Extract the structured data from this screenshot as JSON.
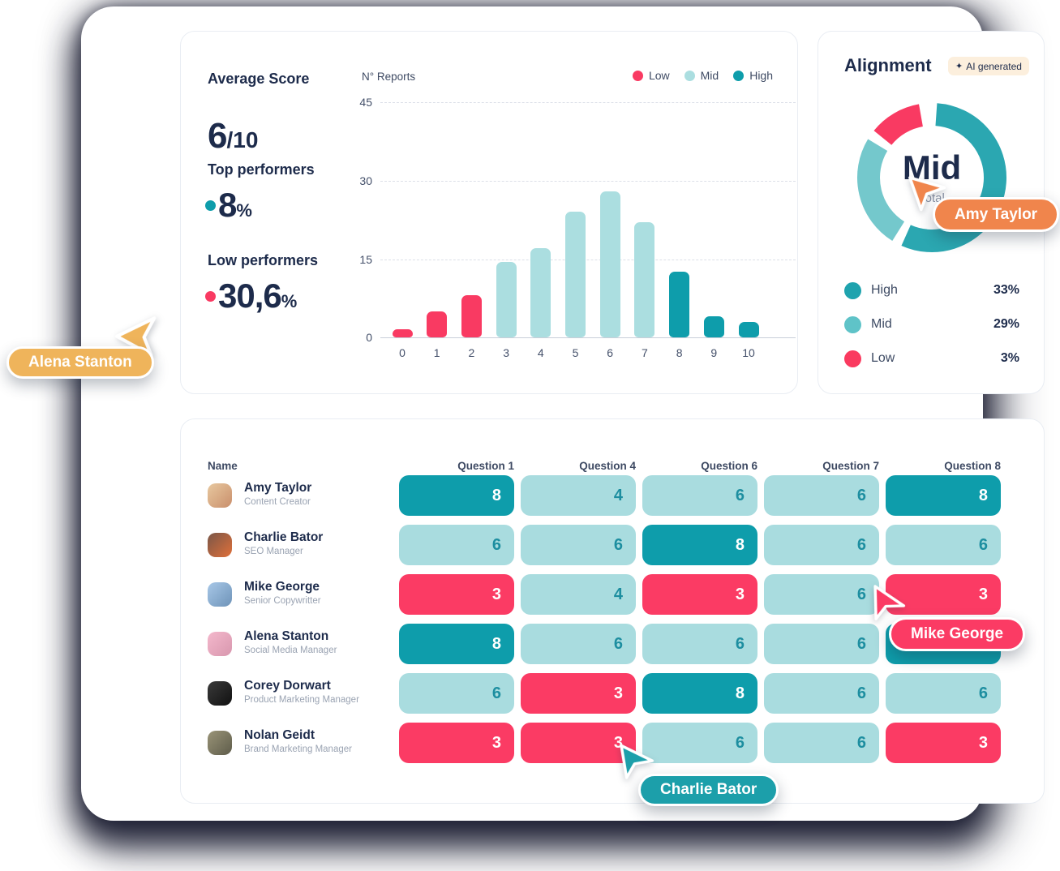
{
  "score_card": {
    "average_label": "Average Score",
    "average_value": "6",
    "average_denominator": "/10",
    "top_label": "Top performers",
    "top_value": "8",
    "top_unit": "%",
    "low_label": "Low performers",
    "low_value": "30,6",
    "low_unit": "%"
  },
  "chart_data": [
    {
      "type": "bar",
      "title": "N° Reports",
      "categories": [
        "0",
        "1",
        "2",
        "3",
        "4",
        "5",
        "6",
        "7",
        "8",
        "9",
        "10"
      ],
      "values": [
        1.5,
        5,
        8,
        14.5,
        17,
        24,
        28,
        22,
        12.5,
        4,
        3
      ],
      "levels": [
        "low",
        "low",
        "low",
        "mid",
        "mid",
        "mid",
        "mid",
        "mid",
        "high",
        "high",
        "high"
      ],
      "yticks": [
        "45",
        "30",
        "15",
        "0"
      ],
      "ylim": [
        0,
        45
      ],
      "grid": "dashed horizontal",
      "legend": [
        {
          "label": "Low",
          "color": "#F93A62"
        },
        {
          "label": "Mid",
          "color": "#ABDEE0"
        },
        {
          "label": "High",
          "color": "#0E9DAB"
        }
      ],
      "legend_position": "top-right"
    },
    {
      "type": "donut",
      "title": "Alignment",
      "center_label": "Mid",
      "center_sublabel": "Total",
      "segments": [
        {
          "label": "High",
          "pct": "33%",
          "arc_deg": 200,
          "color": "#2BA7B1"
        },
        {
          "label": "Mid",
          "pct": "29%",
          "arc_deg": 89,
          "color": "#74C8CC"
        },
        {
          "label": "Low",
          "pct": "3%",
          "arc_deg": 41,
          "color": "#F93A62"
        }
      ]
    }
  ],
  "alignment_card": {
    "title": "Alignment",
    "badge_icon": "✦",
    "badge_label": "AI generated",
    "center_label": "Mid",
    "center_sublabel": "Total",
    "legend": [
      {
        "label": "High",
        "value": "33%"
      },
      {
        "label": "Mid",
        "value": "29%"
      },
      {
        "label": "Low",
        "value": "3%"
      }
    ]
  },
  "table": {
    "name_header": "Name",
    "question_headers": [
      "Question 1",
      "Question 4",
      "Question 6",
      "Question 7",
      "Question 8"
    ],
    "rows": [
      {
        "name": "Amy Taylor",
        "role": "Content Creator",
        "cells": [
          {
            "v": "8",
            "level": "high"
          },
          {
            "v": "4",
            "level": "mid"
          },
          {
            "v": "6",
            "level": "mid"
          },
          {
            "v": "6",
            "level": "mid"
          },
          {
            "v": "8",
            "level": "high"
          }
        ]
      },
      {
        "name": "Charlie Bator",
        "role": "SEO Manager",
        "cells": [
          {
            "v": "6",
            "level": "mid"
          },
          {
            "v": "6",
            "level": "mid"
          },
          {
            "v": "8",
            "level": "high"
          },
          {
            "v": "6",
            "level": "mid"
          },
          {
            "v": "6",
            "level": "mid"
          }
        ]
      },
      {
        "name": "Mike George",
        "role": "Senior Copywritter",
        "cells": [
          {
            "v": "3",
            "level": "low"
          },
          {
            "v": "4",
            "level": "mid"
          },
          {
            "v": "3",
            "level": "low"
          },
          {
            "v": "6",
            "level": "mid"
          },
          {
            "v": "3",
            "level": "low"
          }
        ]
      },
      {
        "name": "Alena Stanton",
        "role": "Social Media Manager",
        "cells": [
          {
            "v": "8",
            "level": "high"
          },
          {
            "v": "6",
            "level": "mid"
          },
          {
            "v": "6",
            "level": "mid"
          },
          {
            "v": "6",
            "level": "mid"
          },
          {
            "v": "8",
            "level": "high"
          }
        ]
      },
      {
        "name": "Corey Dorwart",
        "role": "Product Marketing Manager",
        "cells": [
          {
            "v": "6",
            "level": "mid"
          },
          {
            "v": "3",
            "level": "low"
          },
          {
            "v": "8",
            "level": "high"
          },
          {
            "v": "6",
            "level": "mid"
          },
          {
            "v": "6",
            "level": "mid"
          }
        ]
      },
      {
        "name": "Nolan Geidt",
        "role": "Brand Marketing Manager",
        "cells": [
          {
            "v": "3",
            "level": "low"
          },
          {
            "v": "3",
            "level": "low"
          },
          {
            "v": "6",
            "level": "mid"
          },
          {
            "v": "6",
            "level": "mid"
          },
          {
            "v": "3",
            "level": "low"
          }
        ]
      }
    ]
  },
  "cursors": [
    {
      "label": "Alena Stanton",
      "color": "#EFB45B"
    },
    {
      "label": "Amy Taylor",
      "color": "#F0854C"
    },
    {
      "label": "Mike George",
      "color": "#FB3B64"
    },
    {
      "label": "Charlie Bator",
      "color": "#1C9FAA"
    }
  ]
}
